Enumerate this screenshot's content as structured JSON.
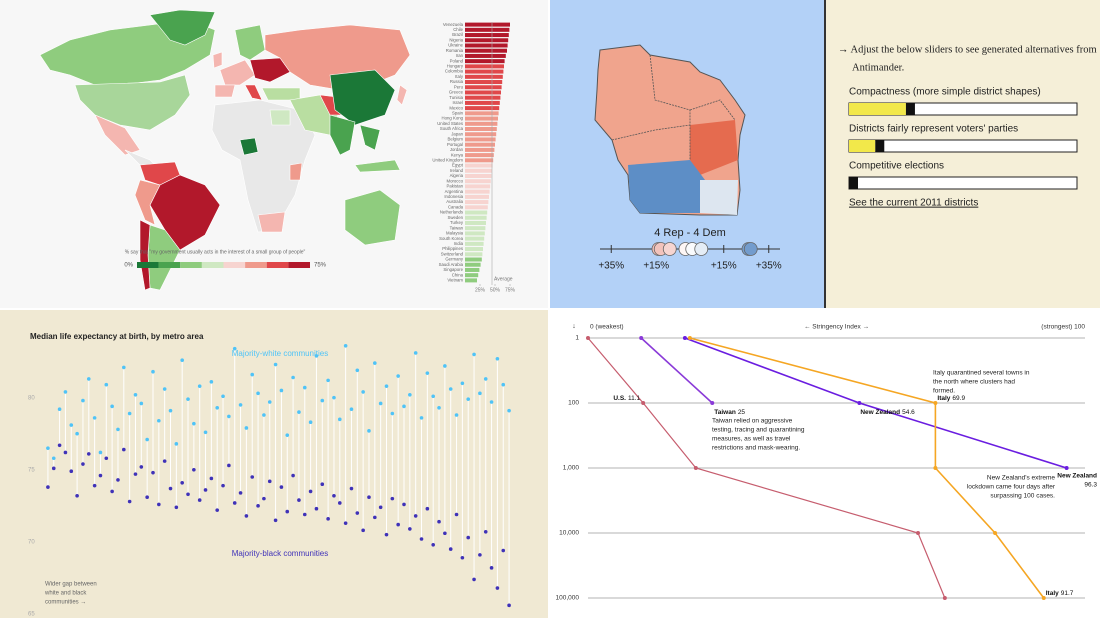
{
  "chart_data": [
    {
      "type": "bar",
      "orientation": "horizontal",
      "categories": [
        "Venezuela",
        "Chile",
        "Brazil",
        "Nigeria",
        "Ukraine",
        "Romania",
        "Iran",
        "Poland",
        "Hungary",
        "Colombia",
        "Italy",
        "Russia",
        "Peru",
        "Greece",
        "Tunisia",
        "Israel",
        "Mexico",
        "Spain",
        "Hong Kong",
        "United States",
        "South Africa",
        "Japan",
        "Belgium",
        "Portugal",
        "Jordan",
        "Kenya",
        "United Kingdom",
        "Egypt",
        "Ireland",
        "Algeria",
        "Morocco",
        "Pakistan",
        "Argentina",
        "Indonesia",
        "Australia",
        "Canada",
        "Netherlands",
        "Sweden",
        "Turkey",
        "Taiwan",
        "Malaysia",
        "South Korea",
        "India",
        "Philippines",
        "Switzerland",
        "Germany",
        "Saudi Arabia",
        "Singapore",
        "China",
        "Vietnam"
      ],
      "values": [
        75,
        74,
        73,
        72,
        71,
        70,
        68,
        66,
        65,
        64,
        63,
        62,
        61,
        60,
        59,
        58,
        57,
        56,
        55,
        54,
        53,
        52,
        51,
        50,
        49,
        48,
        47,
        46,
        45,
        44,
        43,
        42,
        41,
        40,
        39,
        38,
        37,
        36,
        35,
        34,
        33,
        32,
        31,
        30,
        29,
        28,
        26,
        24,
        22,
        20
      ],
      "xlim": [
        0,
        80
      ],
      "xticks": [
        {
          "value": 25,
          "label": "25%"
        },
        {
          "value": 50,
          "label": "50%"
        },
        {
          "value": 75,
          "label": "75%"
        }
      ],
      "average": 45,
      "average_label": "Average",
      "map_caption": "% say that \"my government usually acts in the interest of a small group of people\"",
      "color_scale": {
        "colors": [
          "#1b7837",
          "#4aa34f",
          "#8fcc7e",
          "#cfe8c2",
          "#f7d4d0",
          "#ef9a8c",
          "#e0474a",
          "#b2182b"
        ],
        "ticks": [
          {
            "value": 0,
            "label": "0%"
          },
          {
            "value": 75,
            "label": "75%"
          }
        ]
      }
    },
    {
      "type": "dumbbell",
      "title": "Median life expectancy at birth, by metro area",
      "categories": [
        null,
        null,
        null,
        null,
        null,
        null,
        null,
        null,
        null,
        null,
        null,
        null,
        null,
        null,
        null,
        null,
        null,
        null,
        null,
        null,
        null,
        null,
        null,
        null,
        null,
        null,
        null,
        null,
        null,
        null,
        null,
        null,
        null,
        null,
        null,
        null,
        null,
        null,
        null,
        null,
        null,
        null,
        null,
        null,
        null,
        null,
        null,
        null,
        null,
        null,
        null,
        null,
        null,
        null,
        null,
        null,
        null,
        null,
        null,
        null,
        null,
        null,
        null,
        null,
        null,
        null,
        null,
        null,
        null,
        null,
        null,
        null,
        null,
        null,
        null,
        null,
        null,
        null,
        null,
        null
      ],
      "series": [
        {
          "name": "Majority-white communities",
          "color": "#4fc3f7",
          "values": [
            76.5,
            75.8,
            79.2,
            80.4,
            78.1,
            77.5,
            79.8,
            81.3,
            78.6,
            76.2,
            80.9,
            79.4,
            77.8,
            82.1,
            78.9,
            80.2,
            79.6,
            77.1,
            81.8,
            78.4,
            80.6,
            79.1,
            76.8,
            82.6,
            79.9,
            78.2,
            80.8,
            77.6,
            81.1,
            79.3,
            80.1,
            78.7,
            83.4,
            79.5,
            77.9,
            81.6,
            80.3,
            78.8,
            79.7,
            82.3,
            80.5,
            77.4,
            81.4,
            79.0,
            80.7,
            78.3,
            82.9,
            79.8,
            81.2,
            80.0,
            78.5,
            83.6,
            79.2,
            81.9,
            80.4,
            77.7,
            82.4,
            79.6,
            80.8,
            78.9,
            81.5,
            79.4,
            80.2,
            83.1,
            78.6,
            81.7,
            80.1,
            79.3,
            82.2,
            80.6,
            78.8,
            81.0,
            79.9,
            83.0,
            80.3,
            81.3,
            79.7,
            82.7,
            80.9,
            79.1
          ]
        },
        {
          "name": "Majority-black communities",
          "color": "#3f32b8",
          "values": [
            73.8,
            75.1,
            76.7,
            76.2,
            74.9,
            73.2,
            75.4,
            76.1,
            73.9,
            74.6,
            75.8,
            73.5,
            74.3,
            76.4,
            72.8,
            74.7,
            75.2,
            73.1,
            74.8,
            72.6,
            75.6,
            73.7,
            72.4,
            74.1,
            73.3,
            75.0,
            72.9,
            73.6,
            74.4,
            72.2,
            73.9,
            75.3,
            72.7,
            73.4,
            71.8,
            74.5,
            72.5,
            73.0,
            74.2,
            71.5,
            73.8,
            72.1,
            74.6,
            72.9,
            71.9,
            73.5,
            72.3,
            74.0,
            71.6,
            73.2,
            72.7,
            71.3,
            73.7,
            72.0,
            70.8,
            73.1,
            71.7,
            72.4,
            70.5,
            73.0,
            71.2,
            72.6,
            70.9,
            71.8,
            70.2,
            72.3,
            69.8,
            71.4,
            70.6,
            69.5,
            71.9,
            68.9,
            70.3,
            67.4,
            69.1,
            70.7,
            68.2,
            66.8,
            69.4,
            65.6
          ]
        }
      ],
      "ylim": [
        65,
        84
      ],
      "yticks": [
        65,
        70,
        75,
        80
      ],
      "annotation_lines": [
        "Wider gap between",
        "white and black",
        "communities →"
      ]
    },
    {
      "type": "line",
      "x_label": "← Stringency Index →",
      "y_label": "↓",
      "xlim": [
        0,
        100
      ],
      "xticks": [
        {
          "value": 0,
          "label": "0 (weakest)"
        },
        {
          "value": 100,
          "label": "(strongest) 100"
        }
      ],
      "ylim": [
        1,
        100000
      ],
      "yticks": [
        1,
        100,
        {
          "value": 1000,
          "label": "1,000"
        },
        {
          "value": 10000,
          "label": "10,000"
        },
        {
          "value": 100000,
          "label": "100,000"
        }
      ],
      "log_scale": true,
      "grid": true,
      "series": [
        {
          "name": "U.S.",
          "color": "#c65d6e",
          "x": [
            0,
            11.1,
            21.7,
            66.4,
            71.8
          ],
          "values": [
            1,
            100,
            1000,
            10000,
            100000
          ]
        },
        {
          "name": "Taiwan",
          "color": "#8a3ad8",
          "x": [
            10.7,
            25
          ],
          "values": [
            1,
            100
          ]
        },
        {
          "name": "New Zealand",
          "color": "#6a1de0",
          "x": [
            19.5,
            54.6,
            96.3
          ],
          "values": [
            1,
            100,
            1000
          ]
        },
        {
          "name": "Italy",
          "color": "#f5a623",
          "x": [
            20.5,
            69.9,
            69.9,
            81.9,
            91.7
          ],
          "values": [
            1,
            100,
            1000,
            10000,
            100000
          ]
        }
      ],
      "annotations": [
        {
          "lines": [
            "Italy quarantined several towns in",
            "the north where clusters had",
            "formed."
          ]
        },
        {
          "lines": [
            "Taiwan relied on aggressive",
            "testing, tracing and quarantining",
            "measures, as well as travel",
            "restrictions and mask-wearing."
          ]
        },
        {
          "lines": [
            "New Zealand's extreme",
            "lockdown came four days after",
            "surpassing 100 cases."
          ]
        }
      ]
    }
  ],
  "districts": {
    "seat_summary": "4 Rep  -  4 Dem",
    "margin_lim": [
      -40,
      40
    ],
    "margin_ticks": [
      {
        "value": -35,
        "label": "+35%"
      },
      {
        "value": -15,
        "label": "+15%"
      },
      {
        "value": 15,
        "label": "+15%"
      },
      {
        "value": 35,
        "label": "+35%"
      }
    ],
    "margins": [
      -14,
      -13,
      -9,
      -2,
      1,
      5,
      26,
      27
    ],
    "intro_lines": [
      "→ Adjust the below sliders to see generated alternatives from",
      "Antimander."
    ],
    "slider_range": [
      0,
      100
    ],
    "sliders": [
      {
        "label": "Compactness (more simple district shapes)",
        "value": 26
      },
      {
        "label": "Districts fairly represent voters' parties",
        "value": 12
      },
      {
        "label": "Competitive elections",
        "value": 0
      }
    ],
    "link": "See the current 2011 districts"
  }
}
